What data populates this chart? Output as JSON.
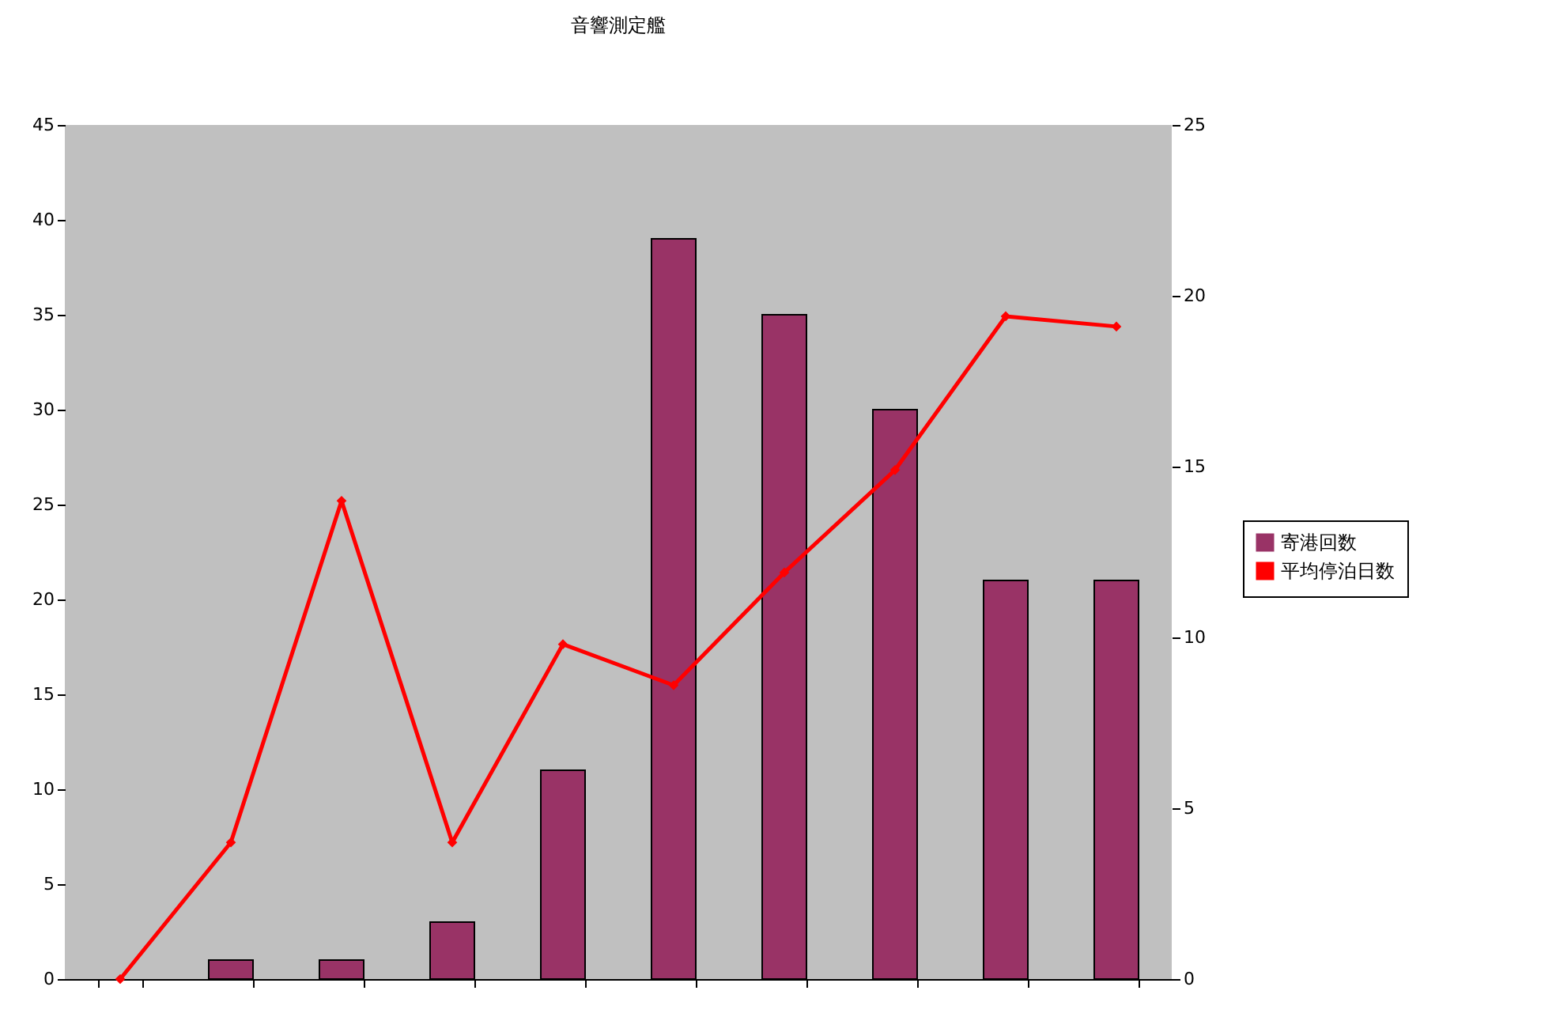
{
  "chart_data": {
    "type": "bar",
    "title": "音響測定艦",
    "categories": [
      null,
      null,
      null,
      null,
      null,
      null,
      null,
      null,
      null,
      null
    ],
    "series": [
      {
        "name": "寄港回数",
        "color": "#993366",
        "values": [
          0,
          1,
          1,
          3,
          11,
          39,
          35,
          30,
          21,
          21
        ]
      },
      {
        "name": "平均停泊日数",
        "type": "line",
        "axis": "y2",
        "color": "#ff0000",
        "marker": "diamond",
        "values": [
          0,
          4.0,
          14.0,
          4.0,
          9.8,
          8.6,
          11.9,
          14.9,
          19.4,
          19.1
        ]
      }
    ],
    "ylim": [
      0,
      45
    ],
    "yticks": [
      0,
      5,
      10,
      15,
      20,
      25,
      30,
      35,
      40,
      45
    ],
    "y2lim": [
      0,
      25
    ],
    "y2ticks": [
      0,
      5,
      10,
      15,
      20,
      25
    ],
    "grid": false,
    "legend": "right"
  }
}
